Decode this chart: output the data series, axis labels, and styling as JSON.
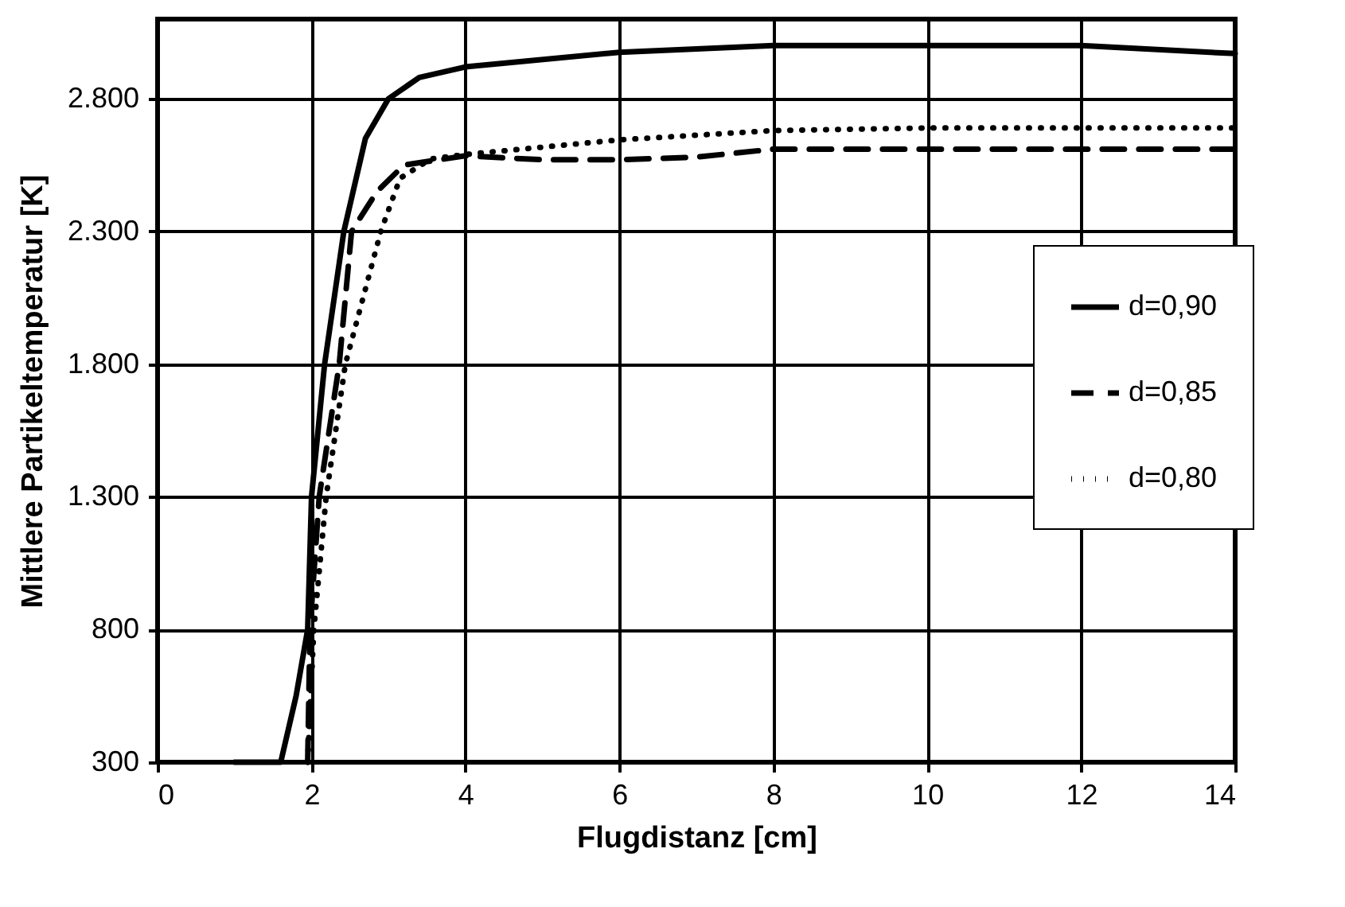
{
  "chart_data": {
    "type": "line",
    "xlabel": "Flugdistanz [cm]",
    "ylabel": "Mittlere Partikeltemperatur [K]",
    "xlim": [
      0,
      14
    ],
    "xticks": [
      0,
      2,
      4,
      6,
      8,
      10,
      12,
      14
    ],
    "ylim": [
      300,
      3100
    ],
    "yticks": [
      {
        "value": 300,
        "label": "300"
      },
      {
        "value": 800,
        "label": "800"
      },
      {
        "value": 1300,
        "label": "1.300"
      },
      {
        "value": 1800,
        "label": "1.800"
      },
      {
        "value": 2300,
        "label": "2.300"
      },
      {
        "value": 2800,
        "label": "2.800"
      }
    ],
    "grid": true,
    "legend": "right",
    "marker": "none",
    "series": [
      {
        "name": "d=0,90",
        "color": "#000000",
        "line_style": "solid",
        "x": [
          1,
          1.6,
          1.8,
          1.95,
          2,
          2.17,
          2.42,
          2.7,
          3,
          3.4,
          4,
          6,
          8,
          10,
          12,
          14
        ],
        "values": [
          300,
          300,
          550,
          800,
          1300,
          1800,
          2300,
          2650,
          2800,
          2880,
          2920,
          2975,
          3000,
          3000,
          3000,
          2970
        ]
      },
      {
        "name": "d=0,85",
        "color": "#000000",
        "line_style": "dashed",
        "x": [
          1.95,
          1.98,
          2.1,
          2.36,
          2.52,
          2.85,
          3.2,
          4,
          5,
          6,
          7,
          8,
          10,
          12,
          14
        ],
        "values": [
          300,
          800,
          1300,
          1800,
          2300,
          2450,
          2550,
          2585,
          2570,
          2570,
          2580,
          2610,
          2610,
          2610,
          2610
        ]
      },
      {
        "name": "d=0,80",
        "color": "#000000",
        "line_style": "dotted",
        "x": [
          1.95,
          2.03,
          2.19,
          2.44,
          2.9,
          3.15,
          3.55,
          4,
          6,
          8,
          10,
          12,
          14
        ],
        "values": [
          300,
          800,
          1300,
          1800,
          2300,
          2500,
          2573,
          2590,
          2645,
          2680,
          2690,
          2690,
          2690
        ]
      }
    ]
  }
}
